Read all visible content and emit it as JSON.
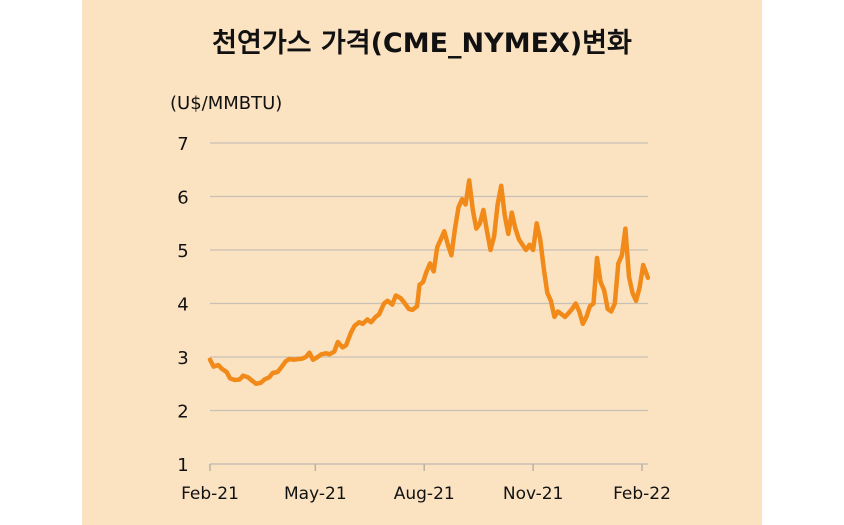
{
  "chart_data": {
    "type": "line",
    "title": "천연가스 가격(CME_NYMEX)변화",
    "ylabel": "(U$/MMBTU)",
    "xlabel": "",
    "ylim": [
      1,
      7
    ],
    "yticks": [
      1,
      2,
      3,
      4,
      5,
      6,
      7
    ],
    "grid": true,
    "x_ticks": [
      "Feb-21",
      "May-21",
      "Aug-21",
      "Nov-21",
      "Feb-22"
    ],
    "series": [
      {
        "color": "#f28a1a",
        "points": [
          [
            "2021-02-01",
            2.95
          ],
          [
            "2021-02-04",
            2.82
          ],
          [
            "2021-02-08",
            2.85
          ],
          [
            "2021-02-11",
            2.78
          ],
          [
            "2021-02-15",
            2.72
          ],
          [
            "2021-02-18",
            2.6
          ],
          [
            "2021-02-22",
            2.57
          ],
          [
            "2021-02-26",
            2.58
          ],
          [
            "2021-03-01",
            2.65
          ],
          [
            "2021-03-05",
            2.62
          ],
          [
            "2021-03-09",
            2.55
          ],
          [
            "2021-03-12",
            2.5
          ],
          [
            "2021-03-16",
            2.52
          ],
          [
            "2021-03-19",
            2.58
          ],
          [
            "2021-03-23",
            2.62
          ],
          [
            "2021-03-26",
            2.7
          ],
          [
            "2021-03-30",
            2.72
          ],
          [
            "2021-04-02",
            2.8
          ],
          [
            "2021-04-06",
            2.92
          ],
          [
            "2021-04-09",
            2.96
          ],
          [
            "2021-04-13",
            2.95
          ],
          [
            "2021-04-16",
            2.96
          ],
          [
            "2021-04-20",
            2.97
          ],
          [
            "2021-04-23",
            3.0
          ],
          [
            "2021-04-26",
            3.08
          ],
          [
            "2021-04-29",
            2.95
          ],
          [
            "2021-05-03",
            3.0
          ],
          [
            "2021-05-06",
            3.05
          ],
          [
            "2021-05-10",
            3.07
          ],
          [
            "2021-05-13",
            3.05
          ],
          [
            "2021-05-17",
            3.1
          ],
          [
            "2021-05-20",
            3.28
          ],
          [
            "2021-05-24",
            3.18
          ],
          [
            "2021-05-27",
            3.22
          ],
          [
            "2021-05-31",
            3.45
          ],
          [
            "2021-06-03",
            3.58
          ],
          [
            "2021-06-07",
            3.65
          ],
          [
            "2021-06-10",
            3.62
          ],
          [
            "2021-06-14",
            3.7
          ],
          [
            "2021-06-17",
            3.65
          ],
          [
            "2021-06-21",
            3.75
          ],
          [
            "2021-06-24",
            3.8
          ],
          [
            "2021-06-28",
            4.0
          ],
          [
            "2021-07-01",
            4.05
          ],
          [
            "2021-07-05",
            3.98
          ],
          [
            "2021-07-08",
            4.15
          ],
          [
            "2021-07-12",
            4.1
          ],
          [
            "2021-07-15",
            4.02
          ],
          [
            "2021-07-19",
            3.9
          ],
          [
            "2021-07-22",
            3.88
          ],
          [
            "2021-07-26",
            3.95
          ],
          [
            "2021-07-28",
            4.35
          ],
          [
            "2021-07-31",
            4.4
          ],
          [
            "2021-08-03",
            4.6
          ],
          [
            "2021-08-06",
            4.75
          ],
          [
            "2021-08-09",
            4.6
          ],
          [
            "2021-08-12",
            5.05
          ],
          [
            "2021-08-15",
            5.2
          ],
          [
            "2021-08-18",
            5.35
          ],
          [
            "2021-08-21",
            5.1
          ],
          [
            "2021-08-24",
            4.9
          ],
          [
            "2021-08-27",
            5.4
          ],
          [
            "2021-08-30",
            5.8
          ],
          [
            "2021-09-02",
            5.95
          ],
          [
            "2021-09-05",
            5.85
          ],
          [
            "2021-09-08",
            6.3
          ],
          [
            "2021-09-11",
            5.75
          ],
          [
            "2021-09-14",
            5.4
          ],
          [
            "2021-09-17",
            5.5
          ],
          [
            "2021-09-20",
            5.75
          ],
          [
            "2021-09-23",
            5.35
          ],
          [
            "2021-09-26",
            5.0
          ],
          [
            "2021-09-29",
            5.25
          ],
          [
            "2021-10-02",
            5.85
          ],
          [
            "2021-10-05",
            6.2
          ],
          [
            "2021-10-08",
            5.65
          ],
          [
            "2021-10-11",
            5.3
          ],
          [
            "2021-10-14",
            5.7
          ],
          [
            "2021-10-17",
            5.4
          ],
          [
            "2021-10-20",
            5.2
          ],
          [
            "2021-10-23",
            5.1
          ],
          [
            "2021-10-26",
            5.0
          ],
          [
            "2021-10-29",
            5.1
          ],
          [
            "2021-11-01",
            5.0
          ],
          [
            "2021-11-04",
            5.5
          ],
          [
            "2021-11-07",
            5.2
          ],
          [
            "2021-11-10",
            4.65
          ],
          [
            "2021-11-13",
            4.2
          ],
          [
            "2021-11-16",
            4.05
          ],
          [
            "2021-11-19",
            3.75
          ],
          [
            "2021-11-22",
            3.85
          ],
          [
            "2021-11-25",
            3.8
          ],
          [
            "2021-11-28",
            3.75
          ],
          [
            "2021-12-01",
            3.82
          ],
          [
            "2021-12-04",
            3.9
          ],
          [
            "2021-12-07",
            4.0
          ],
          [
            "2021-12-10",
            3.85
          ],
          [
            "2021-12-13",
            3.62
          ],
          [
            "2021-12-16",
            3.75
          ],
          [
            "2021-12-19",
            3.95
          ],
          [
            "2021-12-22",
            4.0
          ],
          [
            "2021-12-25",
            4.85
          ],
          [
            "2021-12-28",
            4.4
          ],
          [
            "2021-12-31",
            4.25
          ],
          [
            "2022-01-03",
            3.9
          ],
          [
            "2022-01-06",
            3.85
          ],
          [
            "2022-01-09",
            4.0
          ],
          [
            "2022-01-12",
            4.75
          ],
          [
            "2022-01-15",
            4.9
          ],
          [
            "2022-01-18",
            5.4
          ],
          [
            "2022-01-21",
            4.5
          ],
          [
            "2022-01-24",
            4.2
          ],
          [
            "2022-01-27",
            4.05
          ],
          [
            "2022-01-30",
            4.3
          ],
          [
            "2022-02-02",
            4.72
          ],
          [
            "2022-02-04",
            4.6
          ],
          [
            "2022-02-06",
            4.48
          ]
        ]
      }
    ]
  }
}
